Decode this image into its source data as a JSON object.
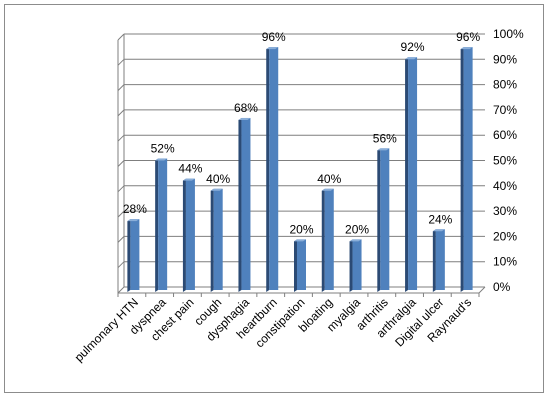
{
  "chart_data": {
    "type": "bar",
    "title": "",
    "xlabel": "",
    "ylabel": "",
    "categories": [
      "pulmonary HTN",
      "dyspnea",
      "chest pain",
      "cough",
      "dysphagia",
      "heartburn",
      "constipation",
      "bloating",
      "myalgia",
      "arthritis",
      "arthralgia",
      "Digital ulcer",
      "Raynaud's"
    ],
    "values": [
      28,
      52,
      44,
      40,
      68,
      96,
      20,
      40,
      20,
      56,
      92,
      24,
      96
    ],
    "data_labels": [
      "28%",
      "52%",
      "44%",
      "40%",
      "68%",
      "96%",
      "20%",
      "40%",
      "20%",
      "56%",
      "92%",
      "24%",
      "96%"
    ],
    "ylim": [
      0,
      100
    ],
    "yticks": [
      0,
      10,
      20,
      30,
      40,
      50,
      60,
      70,
      80,
      90,
      100
    ],
    "ytick_labels": [
      "0%",
      "10%",
      "20%",
      "30%",
      "40%",
      "50%",
      "60%",
      "70%",
      "80%",
      "90%",
      "100%"
    ],
    "y_axis_position": "right",
    "grid": true,
    "legend": "none",
    "bar_style": "3d",
    "colors": {
      "bar_front": "#4f81bd",
      "bar_side": "#2b4a74",
      "bar_top": "#8aaed9",
      "gridline": "#7f7f7f"
    }
  }
}
